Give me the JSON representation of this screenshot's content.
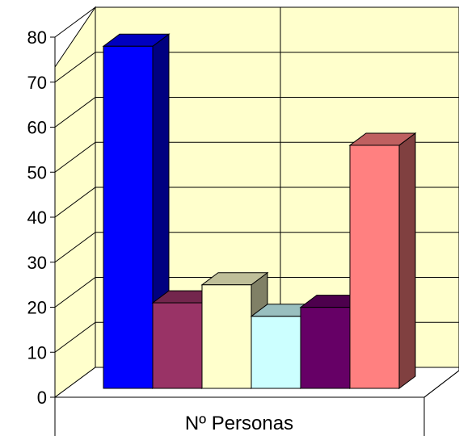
{
  "chart_data": {
    "type": "bar",
    "categories": [
      "Nº Personas"
    ],
    "series": [
      {
        "values": [
          76
        ],
        "color": "#0000FF"
      },
      {
        "values": [
          19
        ],
        "color": "#993366"
      },
      {
        "values": [
          23
        ],
        "color": "#FFFFCC"
      },
      {
        "values": [
          16
        ],
        "color": "#CCFFFF"
      },
      {
        "values": [
          18
        ],
        "color": "#660066"
      },
      {
        "values": [
          54
        ],
        "color": "#FF8080"
      }
    ],
    "ylim": [
      0,
      80
    ],
    "yticks": [
      "0",
      "10",
      "20",
      "30",
      "40",
      "50",
      "60",
      "70",
      "80"
    ],
    "grid": true,
    "style": "3d-clustered-column",
    "wall_color": "#FFFFCC"
  }
}
